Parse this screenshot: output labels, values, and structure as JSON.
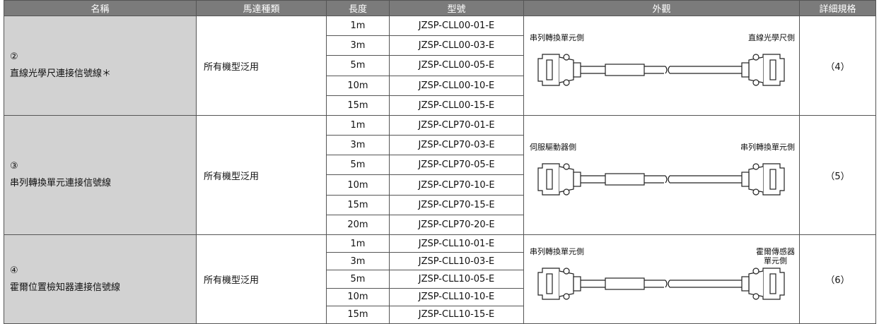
{
  "table": {
    "header": [
      "名稱",
      "馬達種類",
      "長度",
      "型號",
      "外觀",
      "詳細規格"
    ],
    "groups": [
      {
        "number": "②",
        "name": "直線光學尺連接信號線＊",
        "motor": "所有機型泛用",
        "rows": [
          [
            "1m",
            "JZSP-CLL00-01-E"
          ],
          [
            "3m",
            "JZSP-CLL00-03-E"
          ],
          [
            "5m",
            "JZSP-CLL00-05-E"
          ],
          [
            "10m",
            "JZSP-CLL00-10-E"
          ],
          [
            "15m",
            "JZSP-CLL00-15-E"
          ]
        ],
        "left_label": "串列轉換單元側",
        "right_label": [
          "直線光學尺側"
        ],
        "spec": "（4）"
      },
      {
        "number": "③",
        "name": "串列轉換單元連接信號線",
        "motor": "所有機型泛用",
        "rows": [
          [
            "1m",
            "JZSP-CLP70-01-E"
          ],
          [
            "3m",
            "JZSP-CLP70-03-E"
          ],
          [
            "5m",
            "JZSP-CLP70-05-E"
          ],
          [
            "10m",
            "JZSP-CLP70-10-E"
          ],
          [
            "15m",
            "JZSP-CLP70-15-E"
          ],
          [
            "20m",
            "JZSP-CLP70-20-E"
          ]
        ],
        "left_label": "伺服驅動器側",
        "right_label": [
          "串列轉換單元側"
        ],
        "spec": "（5）"
      },
      {
        "number": "④",
        "name": "霍爾位置檢知器連接信號線",
        "motor": "所有機型泛用",
        "rows": [
          [
            "1m",
            "JZSP-CLL10-01-E"
          ],
          [
            "3m",
            "JZSP-CLL10-03-E"
          ],
          [
            "5m",
            "JZSP-CLL10-05-E"
          ],
          [
            "10m",
            "JZSP-CLL10-10-E"
          ],
          [
            "15m",
            "JZSP-CLL10-15-E"
          ]
        ],
        "left_label": "串列轉換單元側",
        "right_label": [
          "霍爾傳感器",
          "單元側"
        ],
        "spec": "（6）"
      }
    ]
  }
}
